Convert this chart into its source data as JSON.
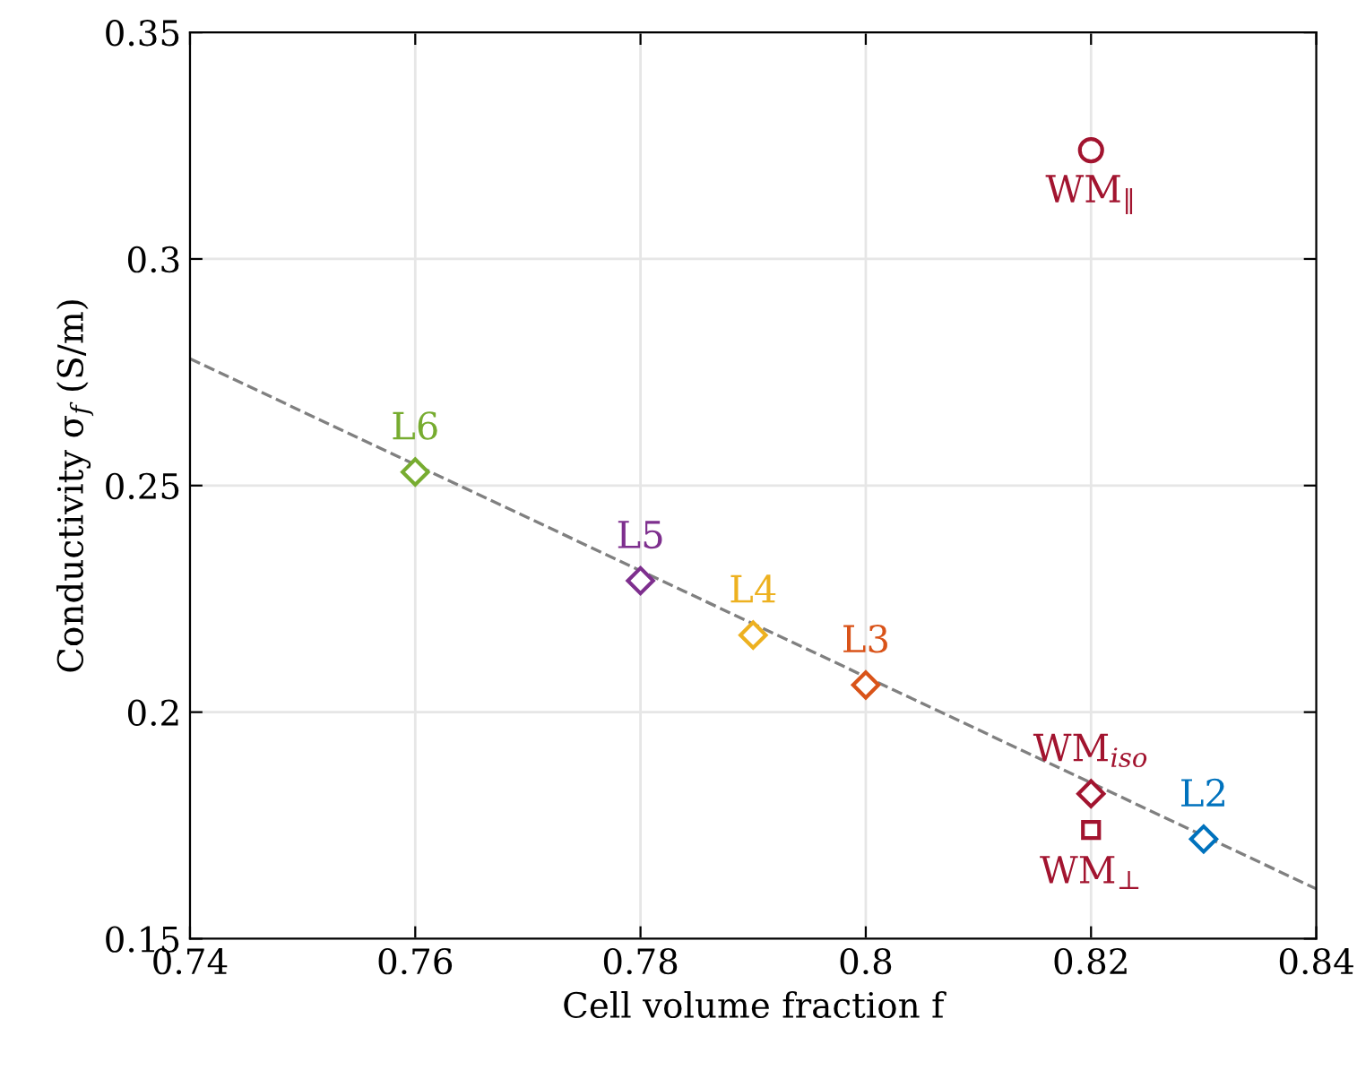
{
  "chart_data": {
    "type": "scatter",
    "xlabel": "Cell volume fraction f",
    "ylabel": "Conductivity σ$_{f}$ (S/m)",
    "xlim": [
      0.74,
      0.84
    ],
    "ylim": [
      0.15,
      0.35
    ],
    "xticks": [
      0.74,
      0.76,
      0.78,
      0.8,
      0.82,
      0.84
    ],
    "yticks": [
      0.15,
      0.2,
      0.25,
      0.3,
      0.35
    ],
    "grid": true,
    "legend": false,
    "series": [
      {
        "type": "line",
        "x": [
          0.74,
          0.84
        ],
        "values": [
          0.278,
          0.161
        ],
        "color": "#808080",
        "line_style": "dashed",
        "marker": "none"
      },
      {
        "name": "L6",
        "x": [
          0.76
        ],
        "values": [
          0.253
        ],
        "color": "#77ac30",
        "marker": "diamond"
      },
      {
        "name": "L5",
        "x": [
          0.78
        ],
        "values": [
          0.229
        ],
        "color": "#7e2f8e",
        "marker": "diamond"
      },
      {
        "name": "L4",
        "x": [
          0.79
        ],
        "values": [
          0.217
        ],
        "color": "#edb120",
        "marker": "diamond"
      },
      {
        "name": "L3",
        "x": [
          0.8
        ],
        "values": [
          0.206
        ],
        "color": "#d95319",
        "marker": "diamond"
      },
      {
        "name": "WM$_{‖}$",
        "x": [
          0.82
        ],
        "values": [
          0.324
        ],
        "color": "#a2142f",
        "marker": "circle"
      },
      {
        "name": "WM$_{iso}$",
        "x": [
          0.82
        ],
        "values": [
          0.182
        ],
        "color": "#a2142f",
        "marker": "diamond"
      },
      {
        "name": "WM$_{⊥}$",
        "x": [
          0.82
        ],
        "values": [
          0.174
        ],
        "color": "#a2142f",
        "marker": "square"
      },
      {
        "name": "L2",
        "x": [
          0.83
        ],
        "values": [
          0.172
        ],
        "color": "#0072bd",
        "marker": "diamond"
      }
    ]
  }
}
